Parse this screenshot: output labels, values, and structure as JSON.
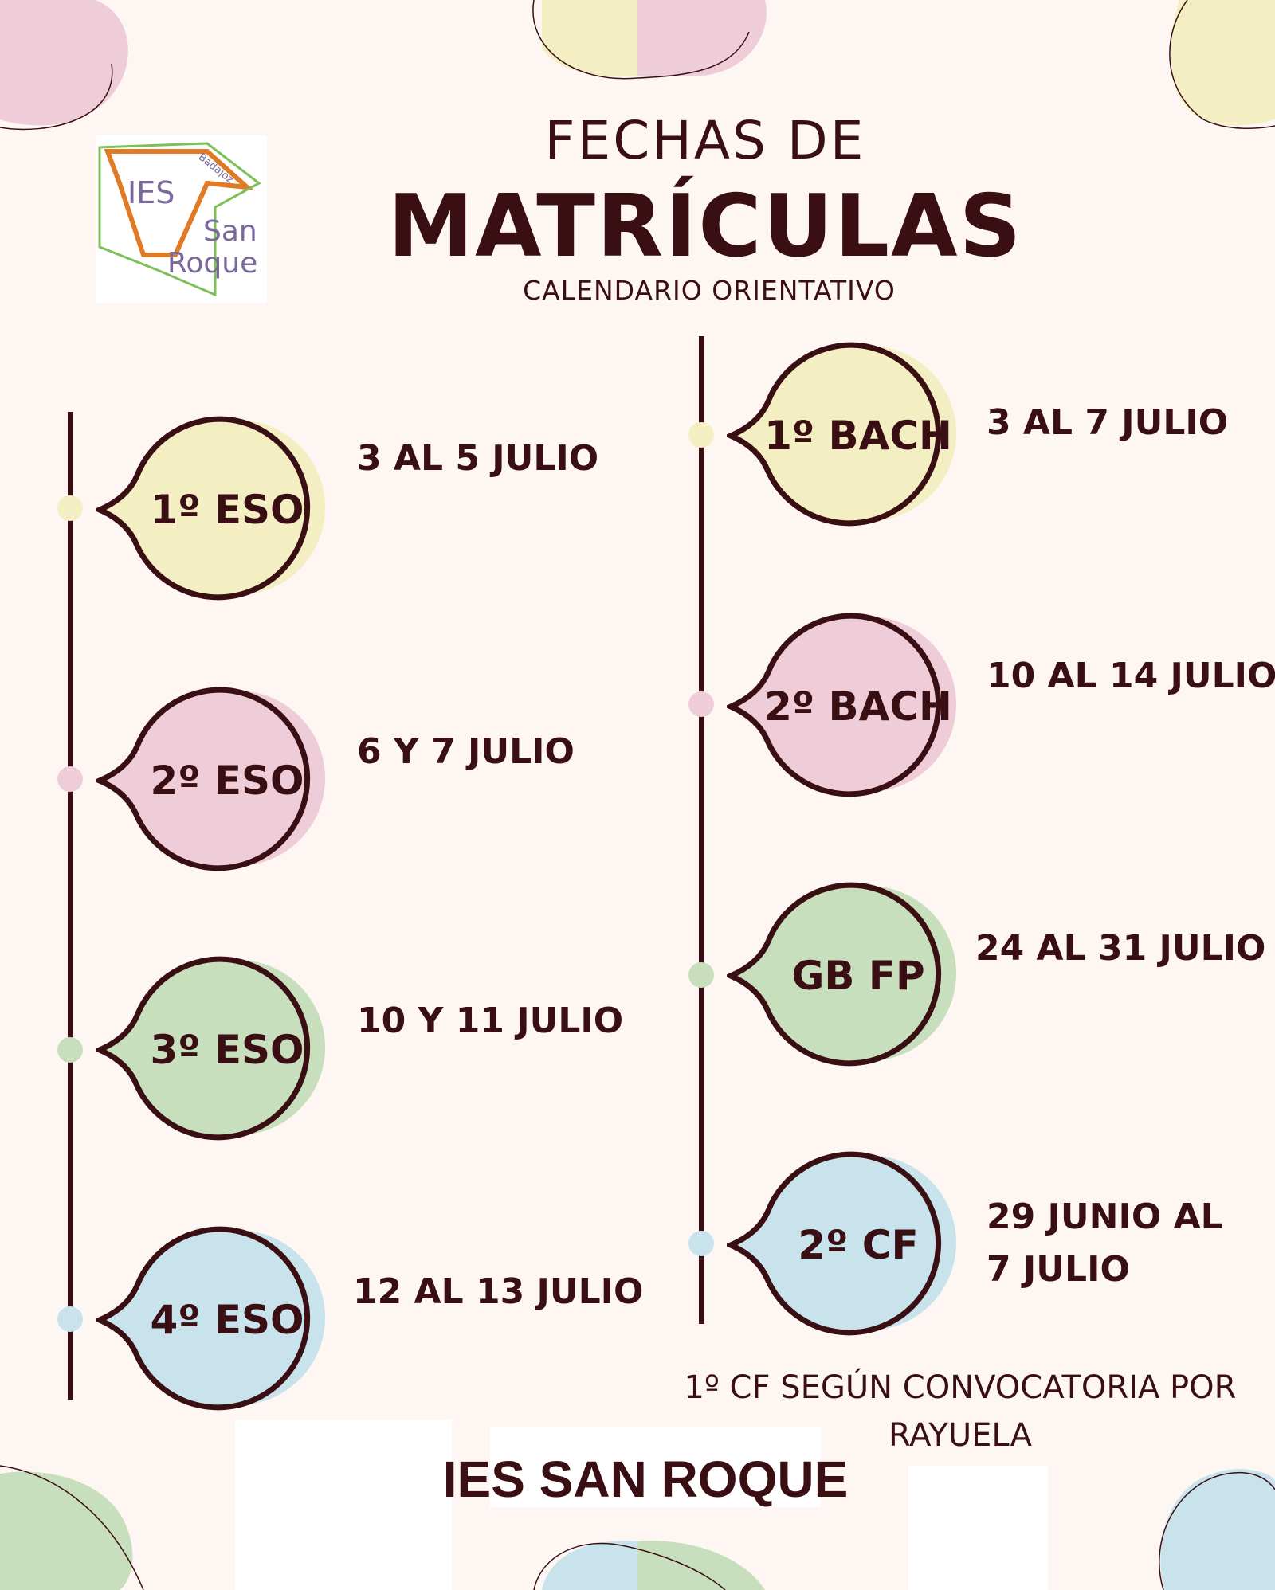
{
  "logo": {
    "line1": "IES",
    "line2": "San",
    "line3": "Roque",
    "badge": "Badajoz"
  },
  "header": {
    "line1": "FECHAS DE",
    "line2": "MATRÍCULAS",
    "line3": "CALENDARIO ORIENTATIVO"
  },
  "colors": {
    "yellow": "#f3efc3",
    "pink": "#efcdd8",
    "green": "#c8dfbd",
    "blue": "#c9e3ec",
    "text": "#3a0f14"
  },
  "left_items": [
    {
      "label": "1º ESO",
      "date": "3 AL 5 JULIO",
      "color": "yellow"
    },
    {
      "label": "2º ESO",
      "date": "6 Y 7 JULIO",
      "color": "pink"
    },
    {
      "label": "3º ESO",
      "date": "10 Y 11 JULIO",
      "color": "green"
    },
    {
      "label": "4º ESO",
      "date": "12 AL 13 JULIO",
      "color": "blue"
    }
  ],
  "right_items": [
    {
      "label": "1º BACH",
      "date": "3 AL 7 JULIO",
      "color": "yellow"
    },
    {
      "label": "2º BACH",
      "date": "10 AL 14 JULIO",
      "color": "pink"
    },
    {
      "label": "GB FP",
      "date": "24 AL 31 JULIO",
      "color": "green"
    },
    {
      "label": "2º CF",
      "date": "29 JUNIO AL 7 JULIO",
      "color": "blue"
    }
  ],
  "note": "1º CF SEGÚN CONVOCATORIA POR RAYUELA",
  "footer": "IES SAN ROQUE"
}
